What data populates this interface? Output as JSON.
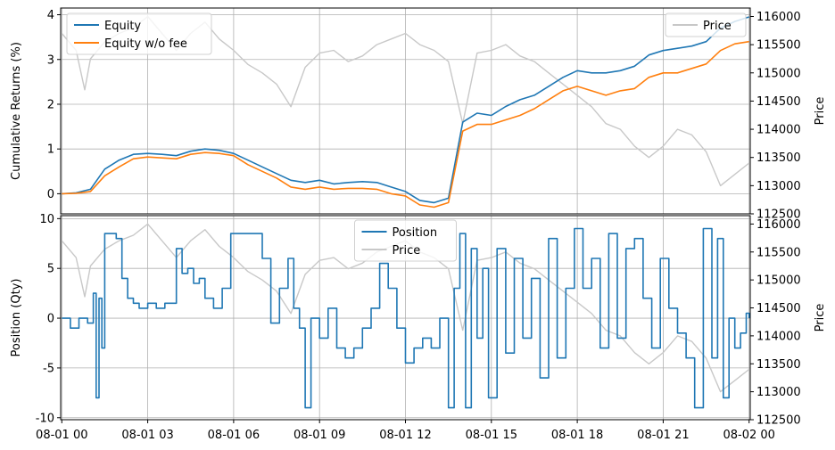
{
  "chart_data": [
    {
      "type": "line",
      "title": "",
      "xlabel": "",
      "ylabel": "Cumulative Returns (%)",
      "y2label": "Price",
      "xlim": [
        -0.04,
        24.04
      ],
      "ylim": [
        -0.45,
        4.15
      ],
      "y2lim": [
        112500,
        116150
      ],
      "x_tick_labels": [
        "08-01 00",
        "08-01 03",
        "08-01 06",
        "08-01 09",
        "08-01 12",
        "08-01 15",
        "08-01 18",
        "08-01 21",
        "08-02 00"
      ],
      "y_ticks": [
        0,
        1,
        2,
        3,
        4
      ],
      "y2_ticks": [
        112500,
        113000,
        113500,
        114000,
        114500,
        115000,
        115500,
        116000
      ],
      "grid": true,
      "legend": "upper-left",
      "legend2": "upper-right",
      "series": [
        {
          "name": "Equity",
          "color": "#1f77b4",
          "x": [
            0,
            0.5,
            1,
            1.5,
            2,
            2.5,
            3,
            3.5,
            4,
            4.5,
            5,
            5.5,
            6,
            6.5,
            7,
            7.5,
            8,
            8.5,
            9,
            9.5,
            10,
            10.5,
            11,
            11.5,
            12,
            12.5,
            13,
            13.5,
            14,
            14.5,
            15,
            15.5,
            16,
            16.5,
            17,
            17.5,
            18,
            18.5,
            19,
            19.5,
            20,
            20.5,
            21,
            21.5,
            22,
            22.5,
            23,
            23.5,
            24
          ],
          "values": [
            0,
            0.02,
            0.1,
            0.55,
            0.75,
            0.88,
            0.9,
            0.88,
            0.85,
            0.95,
            1.0,
            0.97,
            0.9,
            0.75,
            0.6,
            0.45,
            0.3,
            0.25,
            0.3,
            0.22,
            0.25,
            0.27,
            0.25,
            0.15,
            0.05,
            -0.15,
            -0.2,
            -0.1,
            1.6,
            1.8,
            1.75,
            1.95,
            2.1,
            2.2,
            2.4,
            2.6,
            2.75,
            2.7,
            2.7,
            2.75,
            2.85,
            3.1,
            3.2,
            3.25,
            3.3,
            3.4,
            3.7,
            3.85,
            3.95
          ]
        },
        {
          "name": "Equity w/o fee",
          "color": "#ff7f0e",
          "x": [
            0,
            0.5,
            1,
            1.5,
            2,
            2.5,
            3,
            3.5,
            4,
            4.5,
            5,
            5.5,
            6,
            6.5,
            7,
            7.5,
            8,
            8.5,
            9,
            9.5,
            10,
            10.5,
            11,
            11.5,
            12,
            12.5,
            13,
            13.5,
            14,
            14.5,
            15,
            15.5,
            16,
            16.5,
            17,
            17.5,
            18,
            18.5,
            19,
            19.5,
            20,
            20.5,
            21,
            21.5,
            22,
            22.5,
            23,
            23.5,
            24
          ],
          "values": [
            0,
            0.01,
            0.05,
            0.4,
            0.6,
            0.78,
            0.82,
            0.8,
            0.78,
            0.88,
            0.92,
            0.9,
            0.85,
            0.65,
            0.5,
            0.35,
            0.15,
            0.1,
            0.15,
            0.1,
            0.12,
            0.12,
            0.1,
            0.0,
            -0.05,
            -0.25,
            -0.3,
            -0.2,
            1.4,
            1.55,
            1.55,
            1.65,
            1.75,
            1.9,
            2.1,
            2.3,
            2.4,
            2.3,
            2.2,
            2.3,
            2.35,
            2.6,
            2.7,
            2.7,
            2.8,
            2.9,
            3.2,
            3.35,
            3.4
          ]
        },
        {
          "name": "Price",
          "axis": "y2",
          "color": "#c8c8c8",
          "x": [
            0,
            0.5,
            0.8,
            1,
            1.5,
            2,
            2.5,
            3,
            3.5,
            4,
            4.5,
            5,
            5.5,
            6,
            6.5,
            7,
            7.5,
            8,
            8.5,
            9,
            9.5,
            10,
            10.5,
            11,
            11.5,
            12,
            12.5,
            13,
            13.5,
            14,
            14.5,
            15,
            15.5,
            16,
            16.5,
            17,
            17.5,
            18,
            18.5,
            19,
            19.5,
            20,
            20.5,
            21,
            21.5,
            22,
            22.5,
            23,
            23.5,
            24
          ],
          "values": [
            115700,
            115400,
            114700,
            115250,
            115550,
            115700,
            115800,
            116000,
            115700,
            115400,
            115700,
            115900,
            115600,
            115400,
            115150,
            115000,
            114800,
            114400,
            115100,
            115350,
            115400,
            115200,
            115300,
            115500,
            115600,
            115700,
            115500,
            115400,
            115200,
            114100,
            115350,
            115400,
            115500,
            115300,
            115200,
            115000,
            114800,
            114600,
            114400,
            114100,
            114000,
            113700,
            113500,
            113700,
            114000,
            113900,
            113600,
            113000,
            113200,
            113400
          ]
        }
      ]
    },
    {
      "type": "line",
      "title": "",
      "xlabel": "",
      "ylabel": "Position (Qty)",
      "y2label": "Price",
      "xlim": [
        -0.04,
        24.04
      ],
      "ylim": [
        -10.2,
        10.3
      ],
      "y2lim": [
        112500,
        116150
      ],
      "x_tick_labels": [
        "08-01 00",
        "08-01 03",
        "08-01 06",
        "08-01 09",
        "08-01 12",
        "08-01 15",
        "08-01 18",
        "08-01 21",
        "08-02 00"
      ],
      "y_ticks": [
        -10,
        -5,
        0,
        5,
        10
      ],
      "y2_ticks": [
        112500,
        113000,
        113500,
        114000,
        114500,
        115000,
        115500,
        116000
      ],
      "grid": true,
      "legend": "upper-center",
      "series": [
        {
          "name": "Position",
          "color": "#1f77b4",
          "x": [
            0,
            0.3,
            0.6,
            0.9,
            1.1,
            1.2,
            1.3,
            1.4,
            1.5,
            1.7,
            1.9,
            2.1,
            2.3,
            2.5,
            2.7,
            3.0,
            3.3,
            3.6,
            4.0,
            4.2,
            4.4,
            4.6,
            4.8,
            5.0,
            5.3,
            5.6,
            5.9,
            6.3,
            6.7,
            7.0,
            7.3,
            7.6,
            7.9,
            8.1,
            8.3,
            8.5,
            8.7,
            9.0,
            9.3,
            9.6,
            9.9,
            10.2,
            10.5,
            10.8,
            11.1,
            11.4,
            11.7,
            12.0,
            12.3,
            12.6,
            12.9,
            13.2,
            13.5,
            13.7,
            13.9,
            14.1,
            14.3,
            14.5,
            14.7,
            14.9,
            15.2,
            15.5,
            15.8,
            16.1,
            16.4,
            16.7,
            17.0,
            17.3,
            17.6,
            17.9,
            18.2,
            18.5,
            18.8,
            19.1,
            19.4,
            19.7,
            20.0,
            20.3,
            20.6,
            20.9,
            21.2,
            21.5,
            21.8,
            22.1,
            22.4,
            22.7,
            22.9,
            23.1,
            23.3,
            23.5,
            23.7,
            23.9,
            24.0
          ],
          "values": [
            0,
            -1,
            0,
            -0.5,
            2.5,
            -8,
            2,
            -3,
            8.5,
            8.5,
            8,
            4,
            2,
            1.5,
            1,
            1.5,
            1,
            1.5,
            7,
            4.5,
            5,
            3.5,
            4,
            2,
            1,
            3,
            8.5,
            8.5,
            8.5,
            6,
            -0.5,
            3,
            6,
            1,
            -1,
            -9,
            0,
            -2,
            1,
            -3,
            -4,
            -3,
            -1,
            1,
            5.5,
            3,
            -1,
            -4.5,
            -3,
            -2,
            -3,
            0,
            -9,
            3,
            8.5,
            -9,
            7,
            -2,
            5,
            -8,
            7,
            -3.5,
            6,
            -2,
            4,
            -6,
            8,
            -4,
            3,
            9,
            3,
            6,
            -3,
            8.5,
            -2,
            7,
            8,
            2,
            -3,
            6,
            1,
            -1.5,
            -4,
            -9,
            9,
            -4,
            8,
            -8,
            0,
            -3,
            -1.5,
            0.5,
            0
          ]
        },
        {
          "name": "Price",
          "axis": "y2",
          "color": "#c8c8c8",
          "x": [
            0,
            0.5,
            0.8,
            1,
            1.5,
            2,
            2.5,
            3,
            3.5,
            4,
            4.5,
            5,
            5.5,
            6,
            6.5,
            7,
            7.5,
            8,
            8.5,
            9,
            9.5,
            10,
            10.5,
            11,
            11.5,
            12,
            12.5,
            13,
            13.5,
            14,
            14.5,
            15,
            15.5,
            16,
            16.5,
            17,
            17.5,
            18,
            18.5,
            19,
            19.5,
            20,
            20.5,
            21,
            21.5,
            22,
            22.5,
            23,
            23.5,
            24
          ],
          "values": [
            115700,
            115400,
            114700,
            115250,
            115550,
            115700,
            115800,
            116000,
            115700,
            115400,
            115700,
            115900,
            115600,
            115400,
            115150,
            115000,
            114800,
            114400,
            115100,
            115350,
            115400,
            115200,
            115300,
            115500,
            115600,
            115700,
            115500,
            115400,
            115200,
            114100,
            115350,
            115400,
            115500,
            115300,
            115200,
            115000,
            114800,
            114600,
            114400,
            114100,
            114000,
            113700,
            113500,
            113700,
            114000,
            113900,
            113600,
            113000,
            113200,
            113400
          ]
        }
      ]
    }
  ]
}
